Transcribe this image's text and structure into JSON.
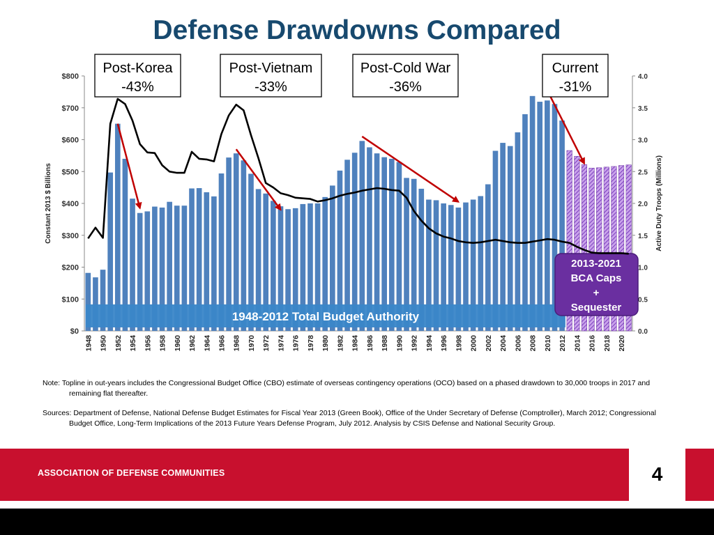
{
  "slide": {
    "title": "Defense Drawdowns Compared",
    "note": "Note: Topline in out-years includes the Congressional Budget Office (CBO) estimate of overseas contingency operations (OCO) based on a phased drawdown to 30,000 troops in 2017 and remaining flat thereafter.",
    "sources": "Sources: Department of Defense, National Defense Budget Estimates for Fiscal Year 2013 (Green Book), Office of the Under Secretary of Defense (Comptroller), March 2012; Congressional Budget Office, Long-Term Implications of the 2013 Future Years Defense Program, July 2012. Analysis by CSIS Defense and National Security Group.",
    "footer_org": "ASSOCIATION OF DEFENSE COMMUNITIES",
    "page_number": "4"
  },
  "colors": {
    "title": "#17496e",
    "bar_actual": "#4f81bd",
    "bar_projected": "#8e44c4",
    "troops_line": "#000000",
    "arrow": "#c00000",
    "banner_blue": "#3a86c8",
    "banner_purple": "#6a2fa0",
    "footer_red": "#c8102e"
  },
  "chart_data": {
    "type": "bar",
    "ylabel": "Constant 2013 $ Billions",
    "y2label": "Active Duty Troops (Millions)",
    "ylim": [
      0,
      800
    ],
    "y2lim": [
      0,
      4.0
    ],
    "yticks": [
      "$0",
      "$100",
      "$200",
      "$300",
      "$400",
      "$500",
      "$600",
      "$700",
      "$800"
    ],
    "y2ticks": [
      "0.0",
      "0.5",
      "1.0",
      "1.5",
      "2.0",
      "2.5",
      "3.0",
      "3.5",
      "4.0"
    ],
    "xticks": [
      "1948",
      "1950",
      "1952",
      "1954",
      "1956",
      "1958",
      "1960",
      "1962",
      "1964",
      "1966",
      "1968",
      "1970",
      "1972",
      "1974",
      "1976",
      "1978",
      "1980",
      "1982",
      "1984",
      "1986",
      "1988",
      "1990",
      "1992",
      "1994",
      "1996",
      "1998",
      "2000",
      "2002",
      "2004",
      "2006",
      "2008",
      "2010",
      "2012",
      "2014",
      "2016",
      "2018",
      "2020"
    ],
    "budget_authority": {
      "name": "1948-2012 Total Budget Authority",
      "x": [
        1948,
        1949,
        1950,
        1951,
        1952,
        1953,
        1954,
        1955,
        1956,
        1957,
        1958,
        1959,
        1960,
        1961,
        1962,
        1963,
        1964,
        1965,
        1966,
        1967,
        1968,
        1969,
        1970,
        1971,
        1972,
        1973,
        1974,
        1975,
        1976,
        1977,
        1978,
        1979,
        1980,
        1981,
        1982,
        1983,
        1984,
        1985,
        1986,
        1987,
        1988,
        1989,
        1990,
        1991,
        1992,
        1993,
        1994,
        1995,
        1996,
        1997,
        1998,
        1999,
        2000,
        2001,
        2002,
        2003,
        2004,
        2005,
        2006,
        2007,
        2008,
        2009,
        2010,
        2011,
        2012
      ],
      "values": [
        182,
        168,
        192,
        497,
        650,
        540,
        415,
        370,
        375,
        390,
        387,
        405,
        393,
        393,
        447,
        448,
        435,
        422,
        494,
        544,
        557,
        535,
        493,
        445,
        431,
        408,
        391,
        382,
        385,
        398,
        400,
        400,
        420,
        456,
        503,
        537,
        559,
        596,
        576,
        557,
        545,
        540,
        530,
        480,
        477,
        446,
        412,
        410,
        400,
        395,
        387,
        403,
        412,
        423,
        460,
        565,
        590,
        580,
        623,
        680,
        737,
        719,
        723,
        712,
        660
      ]
    },
    "bca_projection": {
      "name": "2013-2021 BCA Caps + Sequester",
      "x": [
        2013,
        2014,
        2015,
        2016,
        2017,
        2018,
        2019,
        2020,
        2021
      ],
      "values": [
        566,
        548,
        522,
        511,
        512,
        514,
        516,
        519,
        521
      ]
    },
    "active_duty_troops": {
      "x": [
        1948,
        1949,
        1950,
        1951,
        1952,
        1953,
        1954,
        1955,
        1956,
        1957,
        1958,
        1959,
        1960,
        1961,
        1962,
        1963,
        1964,
        1965,
        1966,
        1967,
        1968,
        1969,
        1970,
        1971,
        1972,
        1973,
        1974,
        1975,
        1976,
        1977,
        1978,
        1979,
        1980,
        1981,
        1982,
        1983,
        1984,
        1985,
        1986,
        1987,
        1988,
        1989,
        1990,
        1991,
        1992,
        1993,
        1994,
        1995,
        1996,
        1997,
        1998,
        1999,
        2000,
        2001,
        2002,
        2003,
        2004,
        2005,
        2006,
        2007,
        2008,
        2009,
        2010,
        2011,
        2012,
        2013,
        2014,
        2015,
        2016,
        2017,
        2018,
        2019,
        2020,
        2021
      ],
      "values": [
        1.45,
        1.62,
        1.46,
        3.25,
        3.64,
        3.56,
        3.3,
        2.93,
        2.8,
        2.79,
        2.6,
        2.5,
        2.48,
        2.48,
        2.81,
        2.7,
        2.69,
        2.66,
        3.09,
        3.38,
        3.55,
        3.46,
        3.07,
        2.71,
        2.32,
        2.25,
        2.16,
        2.13,
        2.09,
        2.08,
        2.07,
        2.03,
        2.05,
        2.08,
        2.12,
        2.15,
        2.17,
        2.2,
        2.22,
        2.24,
        2.23,
        2.21,
        2.2,
        2.09,
        1.88,
        1.73,
        1.61,
        1.53,
        1.48,
        1.45,
        1.41,
        1.39,
        1.38,
        1.39,
        1.41,
        1.43,
        1.41,
        1.39,
        1.38,
        1.38,
        1.4,
        1.42,
        1.44,
        1.43,
        1.4,
        1.38,
        1.32,
        1.27,
        1.23,
        1.22,
        1.22,
        1.22,
        1.22,
        1.21
      ]
    },
    "drawdowns": [
      {
        "label": "Post-Korea",
        "pct": "-43%",
        "from": [
          1952,
          650
        ],
        "to": [
          1955,
          385
        ]
      },
      {
        "label": "Post-Vietnam",
        "pct": "-33%",
        "from": [
          1968,
          570
        ],
        "to": [
          1974,
          380
        ]
      },
      {
        "label": "Post-Cold War",
        "pct": "-36%",
        "from": [
          1985,
          610
        ],
        "to": [
          1998,
          405
        ]
      },
      {
        "label": "Current",
        "pct": "-31%",
        "from": [
          2010,
          755
        ],
        "to": [
          2015,
          525
        ]
      }
    ],
    "banner_blue_text": "1948-2012 Total Budget Authority",
    "banner_purple_lines": [
      "2013-2021",
      "BCA Caps",
      "+",
      "Sequester"
    ]
  }
}
